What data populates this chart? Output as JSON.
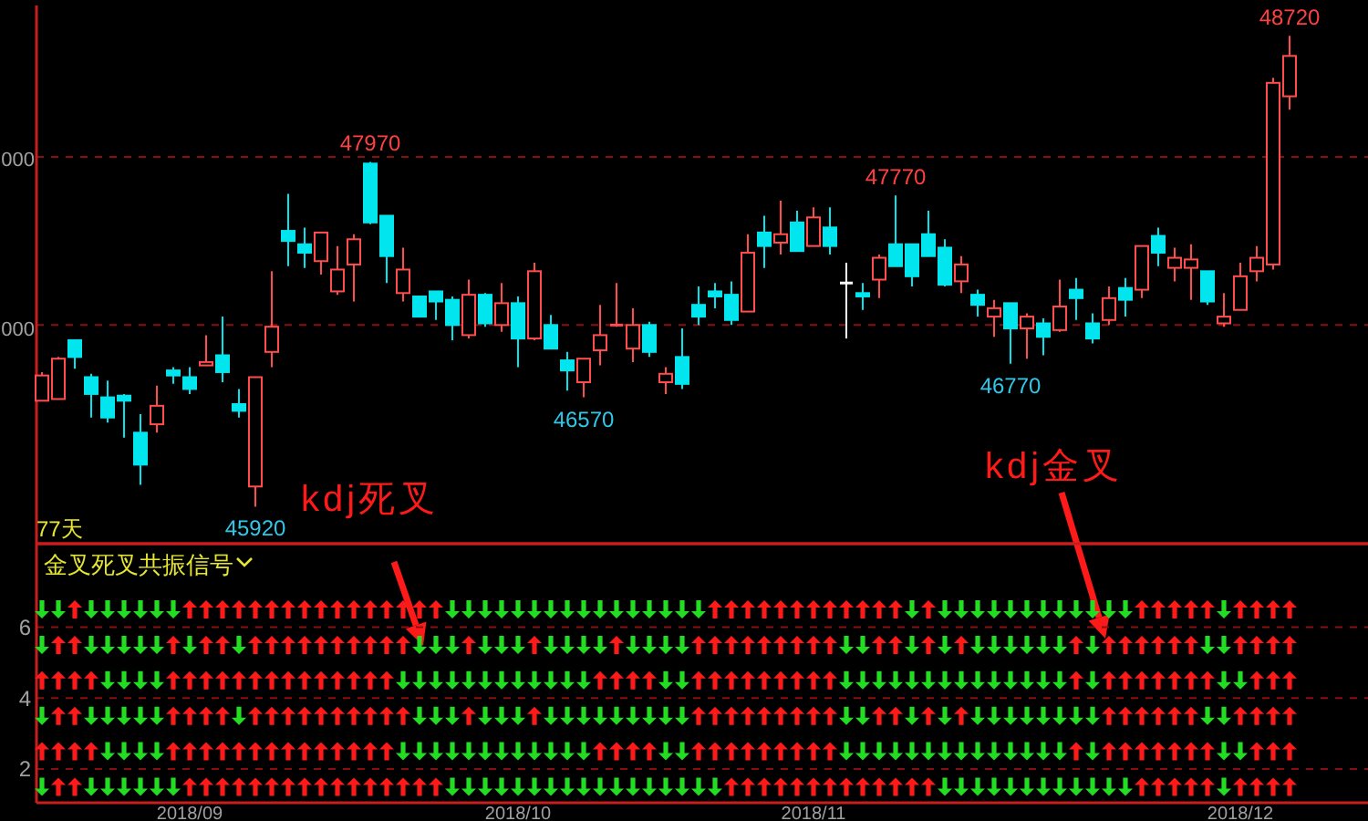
{
  "chart_data": [
    {
      "type": "candlestick",
      "categories": [
        null,
        null,
        null,
        null,
        null,
        null,
        null,
        null,
        null,
        null,
        null,
        null,
        null,
        null,
        null,
        null,
        null,
        null,
        null,
        null,
        null,
        null,
        null,
        null,
        null,
        null,
        null,
        null,
        null,
        null,
        null,
        null,
        null,
        null,
        null,
        null,
        null,
        null,
        null,
        null,
        null,
        null,
        null,
        null,
        null,
        null,
        null,
        null,
        null,
        null,
        null,
        null,
        null,
        null,
        null,
        null,
        null,
        null,
        null,
        null,
        null,
        null,
        null,
        null,
        null,
        null,
        null,
        null,
        null,
        null,
        null,
        null,
        null,
        null,
        null,
        null,
        null
      ],
      "ohlc": [
        [
          46550,
          46720,
          46550,
          46700
        ],
        [
          46560,
          46810,
          46560,
          46800
        ],
        [
          46910,
          46910,
          46740,
          46810
        ],
        [
          46690,
          46710,
          46450,
          46590
        ],
        [
          46570,
          46670,
          46420,
          46450
        ],
        [
          46580,
          46590,
          46330,
          46550
        ],
        [
          46360,
          46470,
          46050,
          46170
        ],
        [
          46410,
          46640,
          46360,
          46520
        ],
        [
          46730,
          46750,
          46650,
          46700
        ],
        [
          46690,
          46750,
          46590,
          46620
        ],
        [
          46760,
          46940,
          46760,
          46780
        ],
        [
          46820,
          47050,
          46660,
          46720
        ],
        [
          46530,
          46620,
          46450,
          46490
        ],
        [
          46040,
          46690,
          45920,
          46690
        ],
        [
          46840,
          47320,
          46750,
          46990
        ],
        [
          47560,
          47780,
          47350,
          47500
        ],
        [
          47480,
          47580,
          47340,
          47430
        ],
        [
          47380,
          47550,
          47300,
          47550
        ],
        [
          47200,
          47470,
          47180,
          47330
        ],
        [
          47360,
          47540,
          47140,
          47510
        ],
        [
          47960,
          47970,
          47600,
          47610
        ],
        [
          47650,
          47650,
          47250,
          47410
        ],
        [
          47190,
          47460,
          47140,
          47330
        ],
        [
          47170,
          47170,
          47050,
          47050
        ],
        [
          47200,
          47200,
          47030,
          47140
        ],
        [
          47150,
          47170,
          46910,
          47000
        ],
        [
          46940,
          47270,
          46920,
          47180
        ],
        [
          47180,
          47190,
          46990,
          47010
        ],
        [
          47000,
          47250,
          46960,
          47130
        ],
        [
          47130,
          47170,
          46750,
          46920
        ],
        [
          46920,
          47370,
          46910,
          47320
        ],
        [
          47000,
          47060,
          46860,
          46860
        ],
        [
          46790,
          46840,
          46610,
          46730
        ],
        [
          46660,
          46800,
          46570,
          46800
        ],
        [
          46850,
          47120,
          46760,
          46940
        ],
        [
          46990,
          47250,
          46990,
          47000
        ],
        [
          46860,
          47100,
          46780,
          47000
        ],
        [
          47000,
          47020,
          46810,
          46840
        ],
        [
          46660,
          46750,
          46590,
          46710
        ],
        [
          46810,
          46980,
          46620,
          46650
        ],
        [
          47120,
          47230,
          47000,
          47050
        ],
        [
          47200,
          47250,
          47100,
          47170
        ],
        [
          47180,
          47260,
          47000,
          47030
        ],
        [
          47080,
          47540,
          47080,
          47430
        ],
        [
          47550,
          47650,
          47340,
          47470
        ],
        [
          47490,
          47740,
          47420,
          47540
        ],
        [
          47610,
          47680,
          47440,
          47440
        ],
        [
          47470,
          47700,
          47470,
          47640
        ],
        [
          47580,
          47700,
          47420,
          47470
        ],
        [
          47250,
          47370,
          46920,
          47250
        ],
        [
          47190,
          47250,
          47090,
          47170
        ],
        [
          47270,
          47420,
          47160,
          47400
        ],
        [
          47480,
          47770,
          47350,
          47350
        ],
        [
          47480,
          47480,
          47230,
          47290
        ],
        [
          47540,
          47680,
          47410,
          47410
        ],
        [
          47460,
          47510,
          47230,
          47240
        ],
        [
          47260,
          47410,
          47190,
          47360
        ],
        [
          47180,
          47210,
          47050,
          47120
        ],
        [
          47050,
          47150,
          46930,
          47100
        ],
        [
          47130,
          47130,
          46770,
          46980
        ],
        [
          46980,
          47070,
          46800,
          47050
        ],
        [
          47010,
          47040,
          46820,
          46930
        ],
        [
          46970,
          47270,
          46960,
          47110
        ],
        [
          47210,
          47280,
          47030,
          47160
        ],
        [
          47010,
          47070,
          46890,
          46920
        ],
        [
          47030,
          47230,
          47000,
          47160
        ],
        [
          47220,
          47280,
          47050,
          47150
        ],
        [
          47210,
          47470,
          47160,
          47470
        ],
        [
          47530,
          47580,
          47350,
          47430
        ],
        [
          47340,
          47460,
          47260,
          47400
        ],
        [
          47340,
          47480,
          47150,
          47390
        ],
        [
          47320,
          47320,
          47120,
          47140
        ],
        [
          47010,
          47190,
          46990,
          47050
        ],
        [
          47090,
          47370,
          47090,
          47290
        ],
        [
          47320,
          47470,
          47260,
          47400
        ],
        [
          47360,
          48470,
          47330,
          48440
        ],
        [
          48360,
          48720,
          48280,
          48600
        ]
      ],
      "colors": [
        "#ff4d4d",
        "#ff4d4d",
        "#00e5ee",
        "#00e5ee",
        "#00e5ee",
        "#00e5ee",
        "#00e5ee",
        "#ff4d4d",
        "#00e5ee",
        "#00e5ee",
        "#ff4d4d",
        "#00e5ee",
        "#00e5ee",
        "#ff4d4d",
        "#ff4d4d",
        "#00e5ee",
        "#00e5ee",
        "#ff4d4d",
        "#ff4d4d",
        "#ff4d4d",
        "#00e5ee",
        "#00e5ee",
        "#ff4d4d",
        "#00e5ee",
        "#00e5ee",
        "#00e5ee",
        "#ff4d4d",
        "#00e5ee",
        "#ff4d4d",
        "#00e5ee",
        "#ff4d4d",
        "#00e5ee",
        "#00e5ee",
        "#ff4d4d",
        "#ff4d4d",
        "#ff4d4d",
        "#ff4d4d",
        "#00e5ee",
        "#ff4d4d",
        "#00e5ee",
        "#00e5ee",
        "#00e5ee",
        "#00e5ee",
        "#ff4d4d",
        "#00e5ee",
        "#ff4d4d",
        "#00e5ee",
        "#ff4d4d",
        "#00e5ee",
        "#ffffff",
        "#00e5ee",
        "#ff4d4d",
        "#00e5ee",
        "#00e5ee",
        "#00e5ee",
        "#00e5ee",
        "#ff4d4d",
        "#00e5ee",
        "#ff4d4d",
        "#00e5ee",
        "#ff4d4d",
        "#00e5ee",
        "#ff4d4d",
        "#00e5ee",
        "#00e5ee",
        "#ff4d4d",
        "#00e5ee",
        "#ff4d4d",
        "#00e5ee",
        "#ff4d4d",
        "#ff4d4d",
        "#00e5ee",
        "#ff4d4d",
        "#ff4d4d",
        "#ff4d4d",
        "#ff4d4d",
        "#ff4d4d"
      ],
      "value_labels": [
        null,
        null,
        null,
        null,
        null,
        null,
        null,
        null,
        null,
        null,
        null,
        null,
        null,
        "45920",
        null,
        null,
        null,
        null,
        null,
        null,
        "47970",
        null,
        null,
        null,
        null,
        null,
        null,
        null,
        null,
        null,
        null,
        null,
        null,
        "46570",
        null,
        null,
        null,
        null,
        null,
        null,
        null,
        null,
        null,
        null,
        null,
        null,
        null,
        null,
        null,
        null,
        null,
        null,
        "47770",
        null,
        null,
        null,
        null,
        null,
        null,
        "46770",
        null,
        null,
        null,
        null,
        null,
        null,
        null,
        null,
        null,
        null,
        null,
        null,
        null,
        null,
        null,
        null,
        "48720"
      ],
      "ylim": [
        45700,
        48900
      ],
      "ref_lines": [
        {
          "axis": "y",
          "value": 47000,
          "color": "#8a1010",
          "line_style": "dashed"
        },
        {
          "axis": "y",
          "value": 48000,
          "color": "#8a1010",
          "line_style": "dashed"
        }
      ],
      "annotations": [
        "77天",
        "kdj死叉",
        "kdj金叉",
        "000",
        "000"
      ]
    },
    {
      "type": "scatter",
      "title": "金叉死叉共振信号",
      "categories": [
        null,
        null,
        null,
        null,
        null,
        null,
        null,
        null,
        null,
        "2018/09",
        null,
        null,
        null,
        null,
        null,
        null,
        null,
        null,
        null,
        null,
        null,
        null,
        null,
        null,
        null,
        null,
        null,
        null,
        null,
        "2018/10",
        null,
        null,
        null,
        null,
        null,
        null,
        null,
        null,
        null,
        null,
        null,
        null,
        null,
        null,
        null,
        null,
        null,
        "2018/11",
        null,
        null,
        null,
        null,
        null,
        null,
        null,
        null,
        null,
        null,
        null,
        null,
        null,
        null,
        null,
        null,
        null,
        null,
        null,
        null,
        null,
        null,
        null,
        null,
        null,
        "2018/12",
        null,
        null,
        null
      ],
      "ylim": [
        1.05,
        8.35
      ],
      "yticks": [
        2,
        4,
        6
      ],
      "grid": "y",
      "series": [
        {
          "color": "#ff1a1a",
          "values": [
            null,
            null,
            6.5,
            null,
            null,
            null,
            null,
            null,
            null,
            6.5,
            6.5,
            6.5,
            6.5,
            6.5,
            6.5,
            6.5,
            6.5,
            6.5,
            6.5,
            6.5,
            6.5,
            6.5,
            6.5,
            6.5,
            6.5,
            null,
            null,
            null,
            null,
            null,
            null,
            null,
            null,
            null,
            null,
            null,
            null,
            null,
            null,
            null,
            null,
            6.5,
            6.5,
            6.5,
            6.5,
            6.5,
            6.5,
            6.5,
            6.5,
            6.5,
            6.5,
            6.5,
            6.5,
            null,
            6.5,
            null,
            null,
            null,
            null,
            null,
            null,
            null,
            null,
            null,
            null,
            null,
            null,
            6.5,
            6.5,
            6.5,
            6.5,
            6.5,
            null,
            6.5,
            6.5,
            6.5,
            6.5
          ]
        },
        {
          "color": "#22dd22",
          "values": [
            6.5,
            6.5,
            null,
            6.5,
            6.5,
            6.5,
            6.5,
            6.5,
            6.5,
            null,
            null,
            null,
            null,
            null,
            null,
            null,
            null,
            null,
            null,
            null,
            null,
            null,
            null,
            null,
            null,
            6.5,
            6.5,
            6.5,
            6.5,
            6.5,
            6.5,
            6.5,
            6.5,
            6.5,
            6.5,
            6.5,
            6.5,
            6.5,
            6.5,
            6.5,
            6.5,
            null,
            null,
            null,
            null,
            null,
            null,
            null,
            null,
            null,
            null,
            null,
            null,
            6.5,
            null,
            6.5,
            6.5,
            6.5,
            6.5,
            6.5,
            6.5,
            6.5,
            6.5,
            6.5,
            6.5,
            6.5,
            6.5,
            null,
            null,
            null,
            null,
            null,
            6.5,
            null,
            null,
            null,
            null
          ]
        },
        {
          "color": "#ff1a1a",
          "values": [
            null,
            5.5,
            5.5,
            null,
            null,
            null,
            null,
            null,
            5.5,
            null,
            5.5,
            5.5,
            null,
            5.5,
            5.5,
            5.5,
            5.5,
            5.5,
            5.5,
            5.5,
            5.5,
            5.5,
            5.5,
            null,
            null,
            null,
            5.5,
            null,
            null,
            null,
            5.5,
            null,
            null,
            null,
            null,
            5.5,
            null,
            null,
            null,
            null,
            5.5,
            5.5,
            5.5,
            5.5,
            5.5,
            5.5,
            5.5,
            5.5,
            5.5,
            null,
            null,
            5.5,
            5.5,
            null,
            5.5,
            null,
            5.5,
            null,
            null,
            null,
            null,
            null,
            null,
            5.5,
            null,
            5.5,
            5.5,
            5.5,
            5.5,
            5.5,
            5.5,
            null,
            null,
            5.5,
            5.5,
            5.5,
            5.5
          ]
        },
        {
          "color": "#22dd22",
          "values": [
            5.5,
            null,
            null,
            5.5,
            5.5,
            5.5,
            5.5,
            5.5,
            null,
            5.5,
            null,
            null,
            5.5,
            null,
            null,
            null,
            null,
            null,
            null,
            null,
            null,
            null,
            null,
            5.5,
            5.5,
            5.5,
            null,
            5.5,
            5.5,
            5.5,
            null,
            5.5,
            5.5,
            5.5,
            5.5,
            null,
            5.5,
            5.5,
            5.5,
            5.5,
            null,
            null,
            null,
            null,
            null,
            null,
            null,
            null,
            null,
            5.5,
            5.5,
            null,
            null,
            5.5,
            null,
            5.5,
            null,
            5.5,
            5.5,
            5.5,
            5.5,
            5.5,
            5.5,
            null,
            5.5,
            null,
            null,
            null,
            null,
            null,
            null,
            5.5,
            5.5,
            null,
            null,
            null,
            null
          ]
        },
        {
          "color": "#ff1a1a",
          "values": [
            4.5,
            4.5,
            4.5,
            4.5,
            null,
            null,
            null,
            null,
            4.5,
            4.5,
            4.5,
            4.5,
            4.5,
            4.5,
            4.5,
            4.5,
            4.5,
            4.5,
            4.5,
            4.5,
            4.5,
            4.5,
            null,
            null,
            null,
            null,
            null,
            null,
            null,
            null,
            null,
            null,
            null,
            null,
            4.5,
            4.5,
            4.5,
            4.5,
            null,
            null,
            4.5,
            4.5,
            4.5,
            4.5,
            4.5,
            4.5,
            4.5,
            4.5,
            4.5,
            null,
            null,
            null,
            null,
            null,
            null,
            null,
            null,
            null,
            null,
            null,
            null,
            null,
            null,
            4.5,
            null,
            4.5,
            4.5,
            4.5,
            4.5,
            4.5,
            4.5,
            4.5,
            null,
            null,
            4.5,
            4.5,
            4.5
          ]
        },
        {
          "color": "#22dd22",
          "values": [
            null,
            null,
            null,
            null,
            4.5,
            4.5,
            4.5,
            4.5,
            null,
            null,
            null,
            null,
            null,
            null,
            null,
            null,
            null,
            null,
            null,
            null,
            null,
            null,
            4.5,
            4.5,
            4.5,
            4.5,
            4.5,
            4.5,
            4.5,
            4.5,
            4.5,
            4.5,
            4.5,
            4.5,
            null,
            null,
            null,
            null,
            4.5,
            4.5,
            null,
            null,
            null,
            null,
            null,
            null,
            null,
            null,
            null,
            4.5,
            4.5,
            4.5,
            4.5,
            4.5,
            4.5,
            4.5,
            4.5,
            4.5,
            4.5,
            4.5,
            4.5,
            4.5,
            4.5,
            null,
            4.5,
            null,
            null,
            null,
            null,
            null,
            null,
            null,
            4.5,
            4.5,
            null,
            null,
            null
          ]
        },
        {
          "color": "#ff1a1a",
          "values": [
            null,
            3.5,
            3.5,
            null,
            null,
            null,
            null,
            null,
            3.5,
            3.5,
            3.5,
            3.5,
            null,
            3.5,
            3.5,
            3.5,
            3.5,
            3.5,
            3.5,
            3.5,
            3.5,
            3.5,
            3.5,
            null,
            null,
            null,
            3.5,
            null,
            null,
            null,
            3.5,
            null,
            null,
            null,
            null,
            null,
            null,
            null,
            null,
            null,
            3.5,
            3.5,
            3.5,
            3.5,
            3.5,
            3.5,
            3.5,
            3.5,
            3.5,
            null,
            null,
            3.5,
            3.5,
            null,
            3.5,
            null,
            3.5,
            null,
            null,
            null,
            null,
            null,
            null,
            null,
            null,
            3.5,
            3.5,
            3.5,
            3.5,
            3.5,
            3.5,
            null,
            null,
            3.5,
            3.5,
            3.5,
            3.5
          ]
        },
        {
          "color": "#22dd22",
          "values": [
            3.5,
            null,
            null,
            3.5,
            3.5,
            3.5,
            3.5,
            3.5,
            null,
            null,
            null,
            null,
            3.5,
            null,
            null,
            null,
            null,
            null,
            null,
            null,
            null,
            null,
            null,
            3.5,
            3.5,
            3.5,
            null,
            3.5,
            3.5,
            3.5,
            null,
            3.5,
            3.5,
            3.5,
            3.5,
            3.5,
            3.5,
            3.5,
            3.5,
            3.5,
            null,
            null,
            null,
            null,
            null,
            null,
            null,
            null,
            null,
            3.5,
            3.5,
            null,
            null,
            3.5,
            null,
            3.5,
            null,
            3.5,
            3.5,
            3.5,
            3.5,
            3.5,
            3.5,
            3.5,
            3.5,
            null,
            null,
            null,
            null,
            null,
            null,
            3.5,
            3.5,
            null,
            null,
            null,
            null
          ]
        },
        {
          "color": "#ff1a1a",
          "values": [
            2.5,
            2.5,
            2.5,
            2.5,
            null,
            null,
            null,
            null,
            2.5,
            2.5,
            2.5,
            2.5,
            2.5,
            2.5,
            2.5,
            2.5,
            2.5,
            2.5,
            2.5,
            2.5,
            2.5,
            2.5,
            null,
            null,
            null,
            null,
            null,
            null,
            null,
            null,
            null,
            null,
            null,
            null,
            2.5,
            2.5,
            2.5,
            2.5,
            null,
            null,
            2.5,
            2.5,
            2.5,
            2.5,
            2.5,
            2.5,
            2.5,
            2.5,
            2.5,
            null,
            null,
            null,
            null,
            null,
            null,
            null,
            null,
            null,
            null,
            null,
            null,
            null,
            null,
            2.5,
            null,
            2.5,
            2.5,
            2.5,
            2.5,
            2.5,
            2.5,
            2.5,
            null,
            null,
            2.5,
            2.5,
            2.5
          ]
        },
        {
          "color": "#22dd22",
          "values": [
            null,
            null,
            null,
            null,
            2.5,
            2.5,
            2.5,
            2.5,
            null,
            null,
            null,
            null,
            null,
            null,
            null,
            null,
            null,
            null,
            null,
            null,
            null,
            null,
            2.5,
            2.5,
            2.5,
            2.5,
            2.5,
            2.5,
            2.5,
            2.5,
            2.5,
            2.5,
            2.5,
            2.5,
            null,
            null,
            null,
            null,
            2.5,
            2.5,
            null,
            null,
            null,
            null,
            null,
            null,
            null,
            null,
            null,
            2.5,
            2.5,
            2.5,
            2.5,
            2.5,
            2.5,
            2.5,
            2.5,
            2.5,
            2.5,
            2.5,
            2.5,
            2.5,
            2.5,
            null,
            2.5,
            null,
            null,
            null,
            null,
            null,
            null,
            null,
            2.5,
            2.5,
            null,
            null,
            null
          ]
        },
        {
          "color": "#ff1a1a",
          "values": [
            null,
            1.5,
            1.5,
            null,
            null,
            null,
            null,
            null,
            null,
            1.5,
            1.5,
            1.5,
            1.5,
            1.5,
            1.5,
            1.5,
            1.5,
            1.5,
            1.5,
            1.5,
            1.5,
            1.5,
            1.5,
            1.5,
            1.5,
            null,
            null,
            null,
            null,
            null,
            null,
            null,
            null,
            null,
            null,
            null,
            null,
            null,
            null,
            null,
            null,
            null,
            1.5,
            1.5,
            1.5,
            1.5,
            1.5,
            1.5,
            1.5,
            1.5,
            1.5,
            1.5,
            1.5,
            1.5,
            1.5,
            null,
            null,
            null,
            null,
            null,
            null,
            null,
            null,
            null,
            null,
            null,
            null,
            1.5,
            1.5,
            1.5,
            1.5,
            1.5,
            null,
            1.5,
            1.5,
            1.5,
            1.5
          ]
        },
        {
          "color": "#22dd22",
          "values": [
            1.5,
            null,
            null,
            1.5,
            1.5,
            1.5,
            1.5,
            1.5,
            1.5,
            null,
            null,
            null,
            null,
            null,
            null,
            null,
            null,
            null,
            null,
            null,
            null,
            null,
            null,
            null,
            null,
            1.5,
            1.5,
            1.5,
            1.5,
            1.5,
            1.5,
            1.5,
            1.5,
            1.5,
            1.5,
            1.5,
            1.5,
            1.5,
            1.5,
            1.5,
            1.5,
            1.5,
            null,
            null,
            null,
            null,
            null,
            null,
            null,
            null,
            null,
            null,
            null,
            null,
            null,
            1.5,
            1.5,
            1.5,
            1.5,
            1.5,
            1.5,
            1.5,
            1.5,
            1.5,
            1.5,
            1.5,
            1.5,
            null,
            null,
            null,
            null,
            null,
            1.5,
            null,
            null,
            null,
            null
          ]
        }
      ]
    }
  ]
}
